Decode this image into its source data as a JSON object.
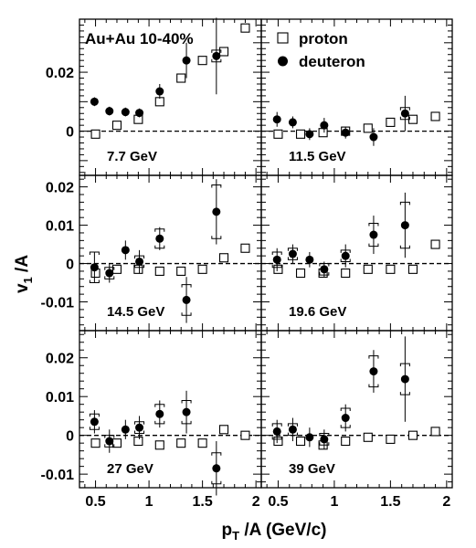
{
  "figure": {
    "collision_label": "Au+Au 10-40%",
    "ylabel_main": "v",
    "ylabel_sub": "1",
    "ylabel_tail": " /A",
    "xlabel_main": "p",
    "xlabel_sub": "T",
    "xlabel_tail": " /A (GeV/c)",
    "legend": [
      {
        "key": "proton",
        "label": "proton"
      },
      {
        "key": "deuteron",
        "label": "deuteron"
      }
    ],
    "colors": {
      "marker": "#000000",
      "background": "#ffffff"
    }
  },
  "chart_data": [
    {
      "type": "scatter",
      "energy_label": "7.7 GeV",
      "xlim": [
        0.35,
        2.05
      ],
      "ylim": [
        -0.015,
        0.038
      ],
      "yticks": [
        0,
        0.02
      ],
      "ytick_labels": [
        "0",
        "0.02"
      ],
      "xticks": [
        0.5,
        1,
        1.5,
        2
      ],
      "xtick_labels": [],
      "zero_line": true,
      "series": [
        {
          "name": "proton",
          "marker": "open-square",
          "points": [
            {
              "x": 0.5,
              "y": -0.001
            },
            {
              "x": 0.7,
              "y": 0.002
            },
            {
              "x": 0.9,
              "y": 0.004
            },
            {
              "x": 1.1,
              "y": 0.01
            },
            {
              "x": 1.3,
              "y": 0.018
            },
            {
              "x": 1.5,
              "y": 0.024
            },
            {
              "x": 1.7,
              "y": 0.027
            },
            {
              "x": 1.9,
              "y": 0.035
            }
          ]
        },
        {
          "name": "deuteron",
          "marker": "filled-circle",
          "points": [
            {
              "x": 0.49,
              "y": 0.01,
              "err": 0.0015
            },
            {
              "x": 0.63,
              "y": 0.0068,
              "err": 0.0015
            },
            {
              "x": 0.78,
              "y": 0.0065,
              "err": 0.0015
            },
            {
              "x": 0.91,
              "y": 0.0062,
              "err": 0.0015
            },
            {
              "x": 1.1,
              "y": 0.0135,
              "err": 0.0025
            },
            {
              "x": 1.35,
              "y": 0.024,
              "err": 0.006
            },
            {
              "x": 1.63,
              "y": 0.0255,
              "err": 0.013,
              "sys": 0.002
            }
          ]
        }
      ]
    },
    {
      "type": "scatter",
      "energy_label": "11.5 GeV",
      "xlim": [
        0.35,
        2.05
      ],
      "ylim": [
        -0.015,
        0.038
      ],
      "yticks": [
        0,
        0.02
      ],
      "ytick_labels": [],
      "xticks": [
        0.5,
        1,
        1.5,
        2
      ],
      "xtick_labels": [],
      "zero_line": true,
      "series": [
        {
          "name": "proton",
          "marker": "open-square",
          "points": [
            {
              "x": 0.5,
              "y": -0.001
            },
            {
              "x": 0.7,
              "y": -0.001
            },
            {
              "x": 0.9,
              "y": -0.0005
            },
            {
              "x": 1.1,
              "y": 0.0
            },
            {
              "x": 1.3,
              "y": 0.001
            },
            {
              "x": 1.5,
              "y": 0.003
            },
            {
              "x": 1.7,
              "y": 0.004
            },
            {
              "x": 1.9,
              "y": 0.005
            }
          ]
        },
        {
          "name": "deuteron",
          "marker": "filled-circle",
          "points": [
            {
              "x": 0.49,
              "y": 0.004,
              "err": 0.0025
            },
            {
              "x": 0.63,
              "y": 0.003,
              "err": 0.002
            },
            {
              "x": 0.78,
              "y": -0.001,
              "err": 0.002
            },
            {
              "x": 0.91,
              "y": 0.002,
              "err": 0.0025
            },
            {
              "x": 1.1,
              "y": -0.0005,
              "err": 0.002
            },
            {
              "x": 1.35,
              "y": -0.002,
              "err": 0.003
            },
            {
              "x": 1.63,
              "y": 0.006,
              "err": 0.006,
              "sys": 0.002
            }
          ]
        }
      ]
    },
    {
      "type": "scatter",
      "energy_label": "14.5 GeV",
      "xlim": [
        0.35,
        2.05
      ],
      "ylim": [
        -0.0175,
        0.023
      ],
      "yticks": [
        -0.01,
        0,
        0.01,
        0.02
      ],
      "ytick_labels": [
        "-0.01",
        "0",
        "0.01",
        "0.02"
      ],
      "xticks": [
        0.5,
        1,
        1.5,
        2
      ],
      "xtick_labels": [],
      "zero_line": true,
      "series": [
        {
          "name": "proton",
          "marker": "open-square",
          "points": [
            {
              "x": 0.5,
              "y": -0.0025
            },
            {
              "x": 0.7,
              "y": -0.0015
            },
            {
              "x": 0.9,
              "y": -0.0015
            },
            {
              "x": 1.1,
              "y": -0.002
            },
            {
              "x": 1.3,
              "y": -0.002
            },
            {
              "x": 1.5,
              "y": -0.0015
            },
            {
              "x": 1.7,
              "y": 0.0015
            },
            {
              "x": 1.9,
              "y": 0.004
            }
          ]
        },
        {
          "name": "deuteron",
          "marker": "filled-circle",
          "points": [
            {
              "x": 0.49,
              "y": -0.001,
              "err": 0.004,
              "sys": 0.004
            },
            {
              "x": 0.63,
              "y": -0.0025,
              "err": 0.0025,
              "sys": 0.0015
            },
            {
              "x": 0.78,
              "y": 0.0035,
              "err": 0.0025
            },
            {
              "x": 0.91,
              "y": 0.0005,
              "err": 0.003,
              "sys": 0.0015
            },
            {
              "x": 1.1,
              "y": 0.0065,
              "err": 0.003,
              "sys": 0.0025
            },
            {
              "x": 1.35,
              "y": -0.0095,
              "err": 0.006,
              "sys": 0.004
            },
            {
              "x": 1.63,
              "y": 0.0135,
              "err": 0.0085,
              "sys": 0.007
            }
          ]
        }
      ]
    },
    {
      "type": "scatter",
      "energy_label": "19.6 GeV",
      "xlim": [
        0.35,
        2.05
      ],
      "ylim": [
        -0.0175,
        0.023
      ],
      "yticks": [
        -0.01,
        0,
        0.01,
        0.02
      ],
      "ytick_labels": [],
      "xticks": [
        0.5,
        1,
        1.5,
        2
      ],
      "xtick_labels": [],
      "zero_line": true,
      "series": [
        {
          "name": "proton",
          "marker": "open-square",
          "points": [
            {
              "x": 0.5,
              "y": -0.0015
            },
            {
              "x": 0.7,
              "y": -0.0025
            },
            {
              "x": 0.9,
              "y": -0.0025
            },
            {
              "x": 1.1,
              "y": -0.0025
            },
            {
              "x": 1.3,
              "y": -0.0015
            },
            {
              "x": 1.5,
              "y": -0.0015
            },
            {
              "x": 1.7,
              "y": -0.0015
            },
            {
              "x": 1.9,
              "y": 0.005
            }
          ]
        },
        {
          "name": "deuteron",
          "marker": "filled-circle",
          "points": [
            {
              "x": 0.49,
              "y": 0.001,
              "err": 0.003,
              "sys": 0.002
            },
            {
              "x": 0.63,
              "y": 0.0025,
              "err": 0.0025,
              "sys": 0.0015
            },
            {
              "x": 0.78,
              "y": 0.001,
              "err": 0.002
            },
            {
              "x": 0.91,
              "y": -0.0015,
              "err": 0.002,
              "sys": 0.0015
            },
            {
              "x": 1.1,
              "y": 0.002,
              "err": 0.003,
              "sys": 0.0015
            },
            {
              "x": 1.35,
              "y": 0.0075,
              "err": 0.005,
              "sys": 0.003
            },
            {
              "x": 1.63,
              "y": 0.01,
              "err": 0.0085,
              "sys": 0.006
            }
          ]
        }
      ]
    },
    {
      "type": "scatter",
      "energy_label": "27 GeV",
      "xlim": [
        0.35,
        2.05
      ],
      "ylim": [
        -0.0135,
        0.027
      ],
      "yticks": [
        -0.01,
        0,
        0.01,
        0.02
      ],
      "ytick_labels": [
        "-0.01",
        "0",
        "0.01",
        "0.02"
      ],
      "xticks": [
        0.5,
        1,
        1.5,
        2
      ],
      "xtick_labels": [
        "0.5",
        "1",
        "1.5",
        "2"
      ],
      "zero_line": true,
      "series": [
        {
          "name": "proton",
          "marker": "open-square",
          "points": [
            {
              "x": 0.5,
              "y": -0.002
            },
            {
              "x": 0.7,
              "y": -0.002
            },
            {
              "x": 0.9,
              "y": -0.0015
            },
            {
              "x": 1.1,
              "y": -0.0025
            },
            {
              "x": 1.3,
              "y": -0.002
            },
            {
              "x": 1.5,
              "y": -0.002
            },
            {
              "x": 1.7,
              "y": 0.0015
            },
            {
              "x": 1.9,
              "y": 0.0
            }
          ]
        },
        {
          "name": "deuteron",
          "marker": "filled-circle",
          "points": [
            {
              "x": 0.49,
              "y": 0.0035,
              "err": 0.003,
              "sys": 0.002
            },
            {
              "x": 0.63,
              "y": -0.0015,
              "err": 0.003,
              "sys": 0.0015
            },
            {
              "x": 0.78,
              "y": 0.0015,
              "err": 0.0025
            },
            {
              "x": 0.91,
              "y": 0.002,
              "err": 0.003,
              "sys": 0.0015
            },
            {
              "x": 1.1,
              "y": 0.0055,
              "err": 0.0035,
              "sys": 0.0025
            },
            {
              "x": 1.35,
              "y": 0.006,
              "err": 0.0055,
              "sys": 0.003
            },
            {
              "x": 1.63,
              "y": -0.0085,
              "err": 0.007,
              "sys": 0.004
            }
          ]
        }
      ]
    },
    {
      "type": "scatter",
      "energy_label": "39 GeV",
      "xlim": [
        0.35,
        2.05
      ],
      "ylim": [
        -0.0135,
        0.027
      ],
      "yticks": [
        -0.01,
        0,
        0.01,
        0.02
      ],
      "ytick_labels": [],
      "xticks": [
        0.5,
        1,
        1.5,
        2
      ],
      "xtick_labels": [
        "0.5",
        "1",
        "1.5",
        "2"
      ],
      "zero_line": true,
      "series": [
        {
          "name": "proton",
          "marker": "open-square",
          "points": [
            {
              "x": 0.5,
              "y": -0.0015
            },
            {
              "x": 0.7,
              "y": -0.0015
            },
            {
              "x": 0.9,
              "y": -0.0025
            },
            {
              "x": 1.1,
              "y": -0.0015
            },
            {
              "x": 1.3,
              "y": -0.0005
            },
            {
              "x": 1.5,
              "y": -0.001
            },
            {
              "x": 1.7,
              "y": 0.0
            },
            {
              "x": 1.9,
              "y": 0.001
            }
          ]
        },
        {
          "name": "deuteron",
          "marker": "filled-circle",
          "points": [
            {
              "x": 0.49,
              "y": 0.001,
              "err": 0.003,
              "sys": 0.002
            },
            {
              "x": 0.63,
              "y": 0.0015,
              "err": 0.003,
              "sys": 0.0015
            },
            {
              "x": 0.78,
              "y": -0.0005,
              "err": 0.0025
            },
            {
              "x": 0.91,
              "y": -0.001,
              "err": 0.0025,
              "sys": 0.0015
            },
            {
              "x": 1.1,
              "y": 0.0045,
              "err": 0.0035,
              "sys": 0.0025
            },
            {
              "x": 1.35,
              "y": 0.0165,
              "err": 0.0055,
              "sys": 0.004
            },
            {
              "x": 1.63,
              "y": 0.0145,
              "err": 0.011,
              "sys": 0.004
            }
          ]
        }
      ]
    }
  ]
}
